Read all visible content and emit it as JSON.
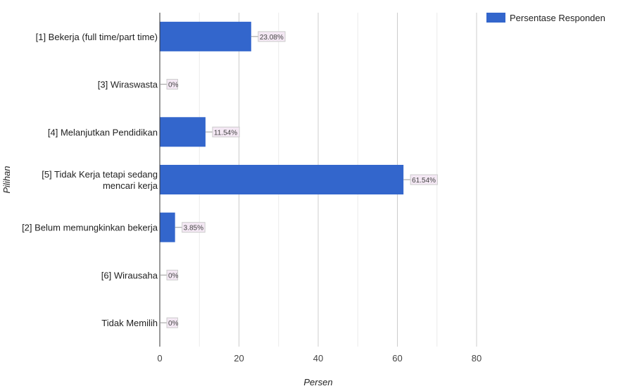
{
  "chart_data": {
    "type": "bar",
    "orientation": "horizontal",
    "title": "",
    "xlabel": "Persen",
    "ylabel": "Pilihan",
    "xlim": [
      0,
      80
    ],
    "x_ticks": [
      0,
      20,
      40,
      60,
      80
    ],
    "grid": true,
    "legend": {
      "position": "top-right",
      "entries": [
        "Persentase Responden"
      ]
    },
    "categories": [
      "[1] Bekerja (full time/part time)",
      "[3] Wiraswasta",
      "[4] Melanjutkan Pendidikan",
      "[5] Tidak Kerja tetapi sedang mencari kerja",
      "[2] Belum memungkinkan bekerja",
      "[6] Wirausaha",
      "Tidak Memilih"
    ],
    "category_lines": [
      [
        "[1] Bekerja (full time/part time)"
      ],
      [
        "[3] Wiraswasta"
      ],
      [
        "[4] Melanjutkan Pendidikan"
      ],
      [
        "[5] Tidak Kerja tetapi sedang",
        "mencari kerja"
      ],
      [
        "[2] Belum memungkinkan bekerja"
      ],
      [
        "[6] Wirausaha"
      ],
      [
        "Tidak Memilih"
      ]
    ],
    "series": [
      {
        "name": "Persentase Responden",
        "color": "#3366cc",
        "values": [
          23.08,
          0,
          11.54,
          61.54,
          3.85,
          0,
          0
        ],
        "labels": [
          "23.08%",
          "0%",
          "11.54%",
          "61.54%",
          "3.85%",
          "0%",
          "0%"
        ]
      }
    ]
  }
}
